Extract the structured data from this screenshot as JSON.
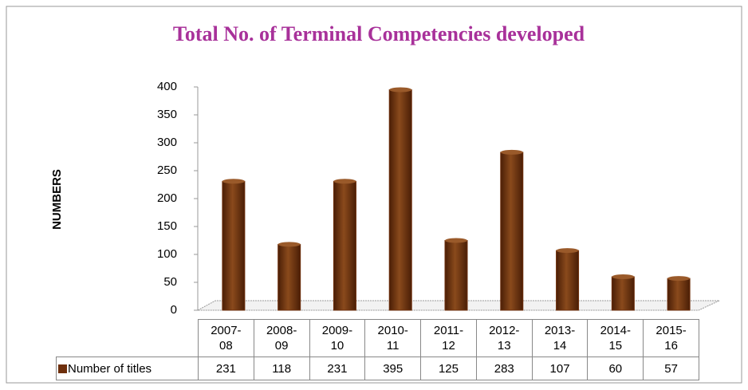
{
  "chart_data": {
    "type": "bar",
    "title": "Total No. of Terminal Competencies developed",
    "y_label": "NUMBERS",
    "categories": [
      "2007-08",
      "2008-09",
      "2009-10",
      "2010-11",
      "2011-12",
      "2012-13",
      "2013-14",
      "2014-15",
      "2015-16"
    ],
    "series": [
      {
        "name": "Number of titles",
        "color": "#6e2f0c",
        "values": [
          231,
          118,
          231,
          395,
          125,
          283,
          107,
          60,
          57
        ]
      }
    ],
    "ylim": [
      0,
      400
    ],
    "yticks": [
      0,
      50,
      100,
      150,
      200,
      250,
      300,
      350,
      400
    ],
    "grid": false
  }
}
